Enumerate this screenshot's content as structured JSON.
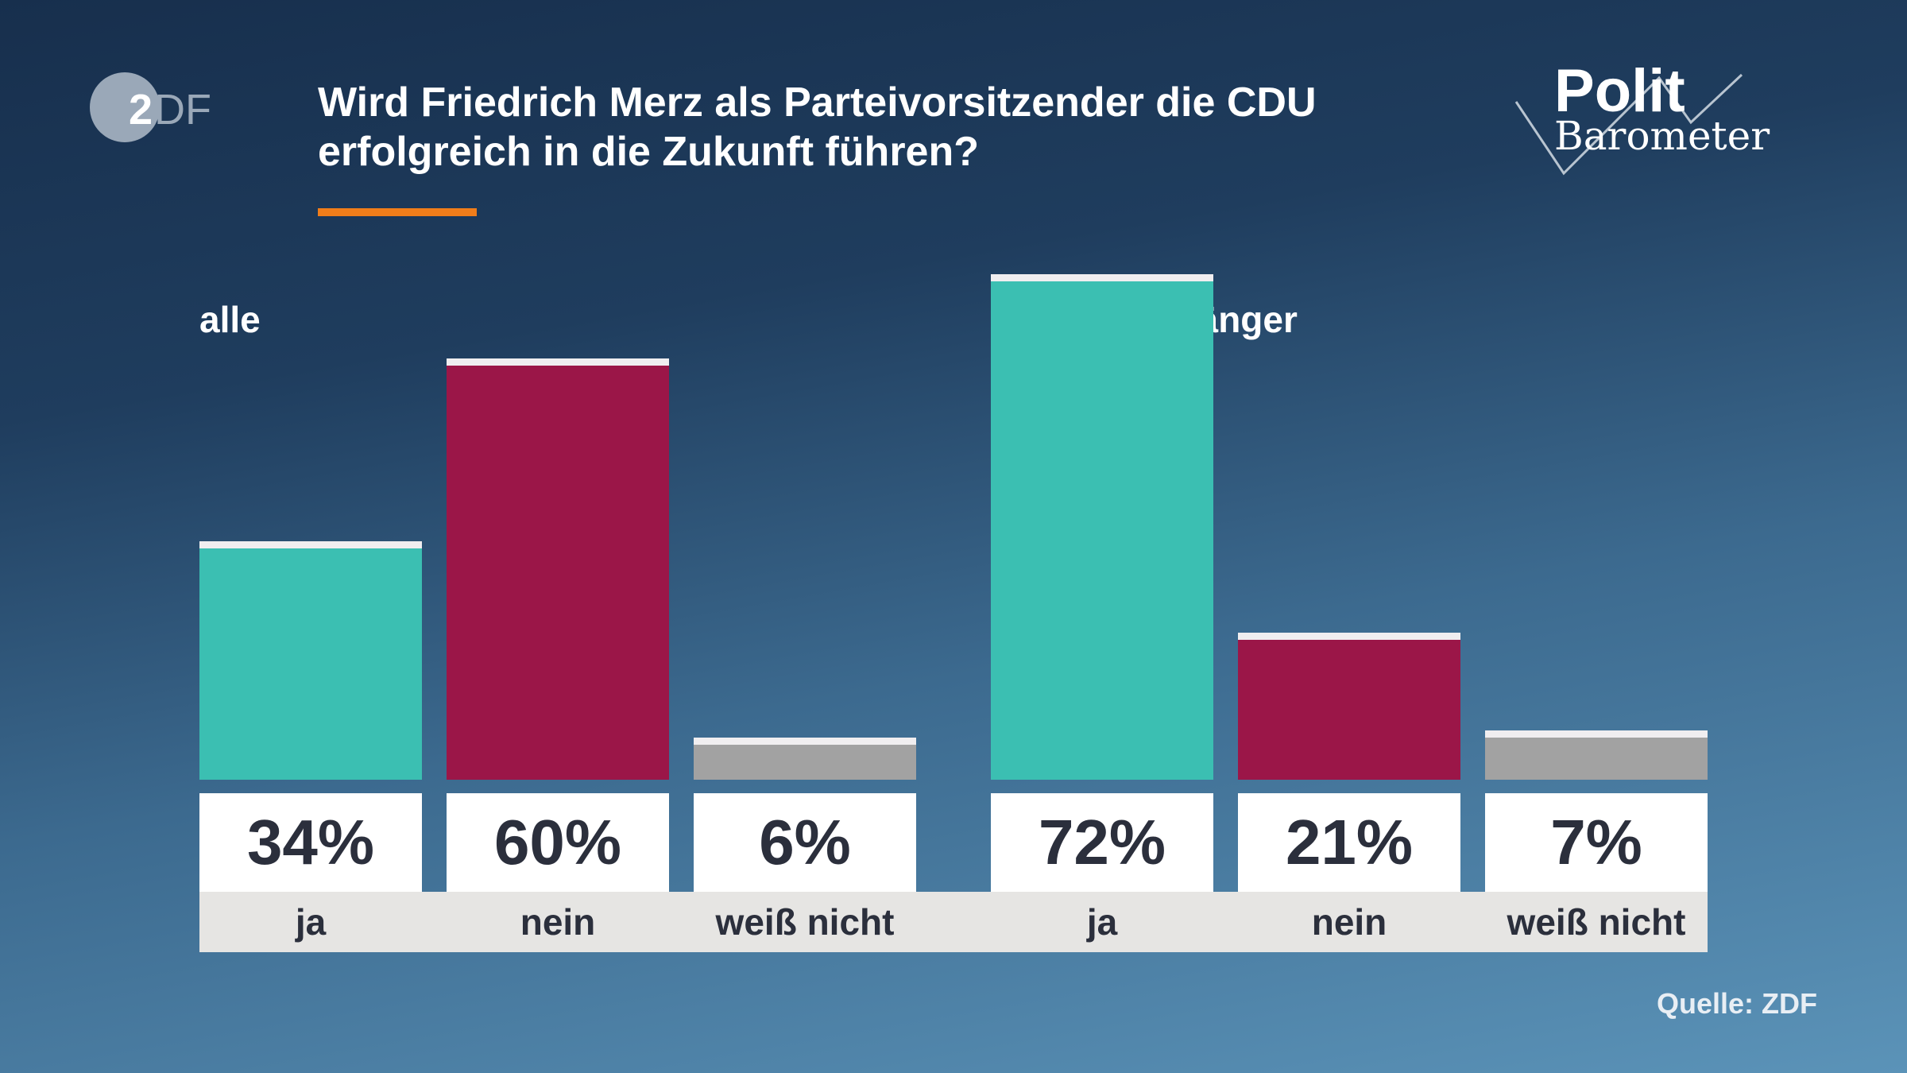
{
  "header": {
    "title": "Wird Friedrich Merz als Parteivorsitzender die CDU erfolgreich in die Zukunft führen?",
    "logo_left": "ZDF",
    "logo_right": "Polit Barometer"
  },
  "colors": {
    "ja": "#3bbfb2",
    "nein": "#9b1648",
    "weiss_nicht": "#a2a2a2",
    "accent": "#f07d1a"
  },
  "chart_data": {
    "type": "bar",
    "unit": "%",
    "groups": [
      {
        "name": "alle",
        "categories": [
          "ja",
          "nein",
          "weiß nicht"
        ],
        "values": [
          34,
          60,
          6
        ],
        "labels": [
          "34%",
          "60%",
          "6%"
        ]
      },
      {
        "name": "Unions-Anhänger",
        "categories": [
          "ja",
          "nein",
          "weiß nicht"
        ],
        "values": [
          72,
          21,
          7
        ],
        "labels": [
          "72%",
          "21%",
          "7%"
        ]
      }
    ]
  },
  "footer": {
    "source": "Quelle: ZDF"
  }
}
